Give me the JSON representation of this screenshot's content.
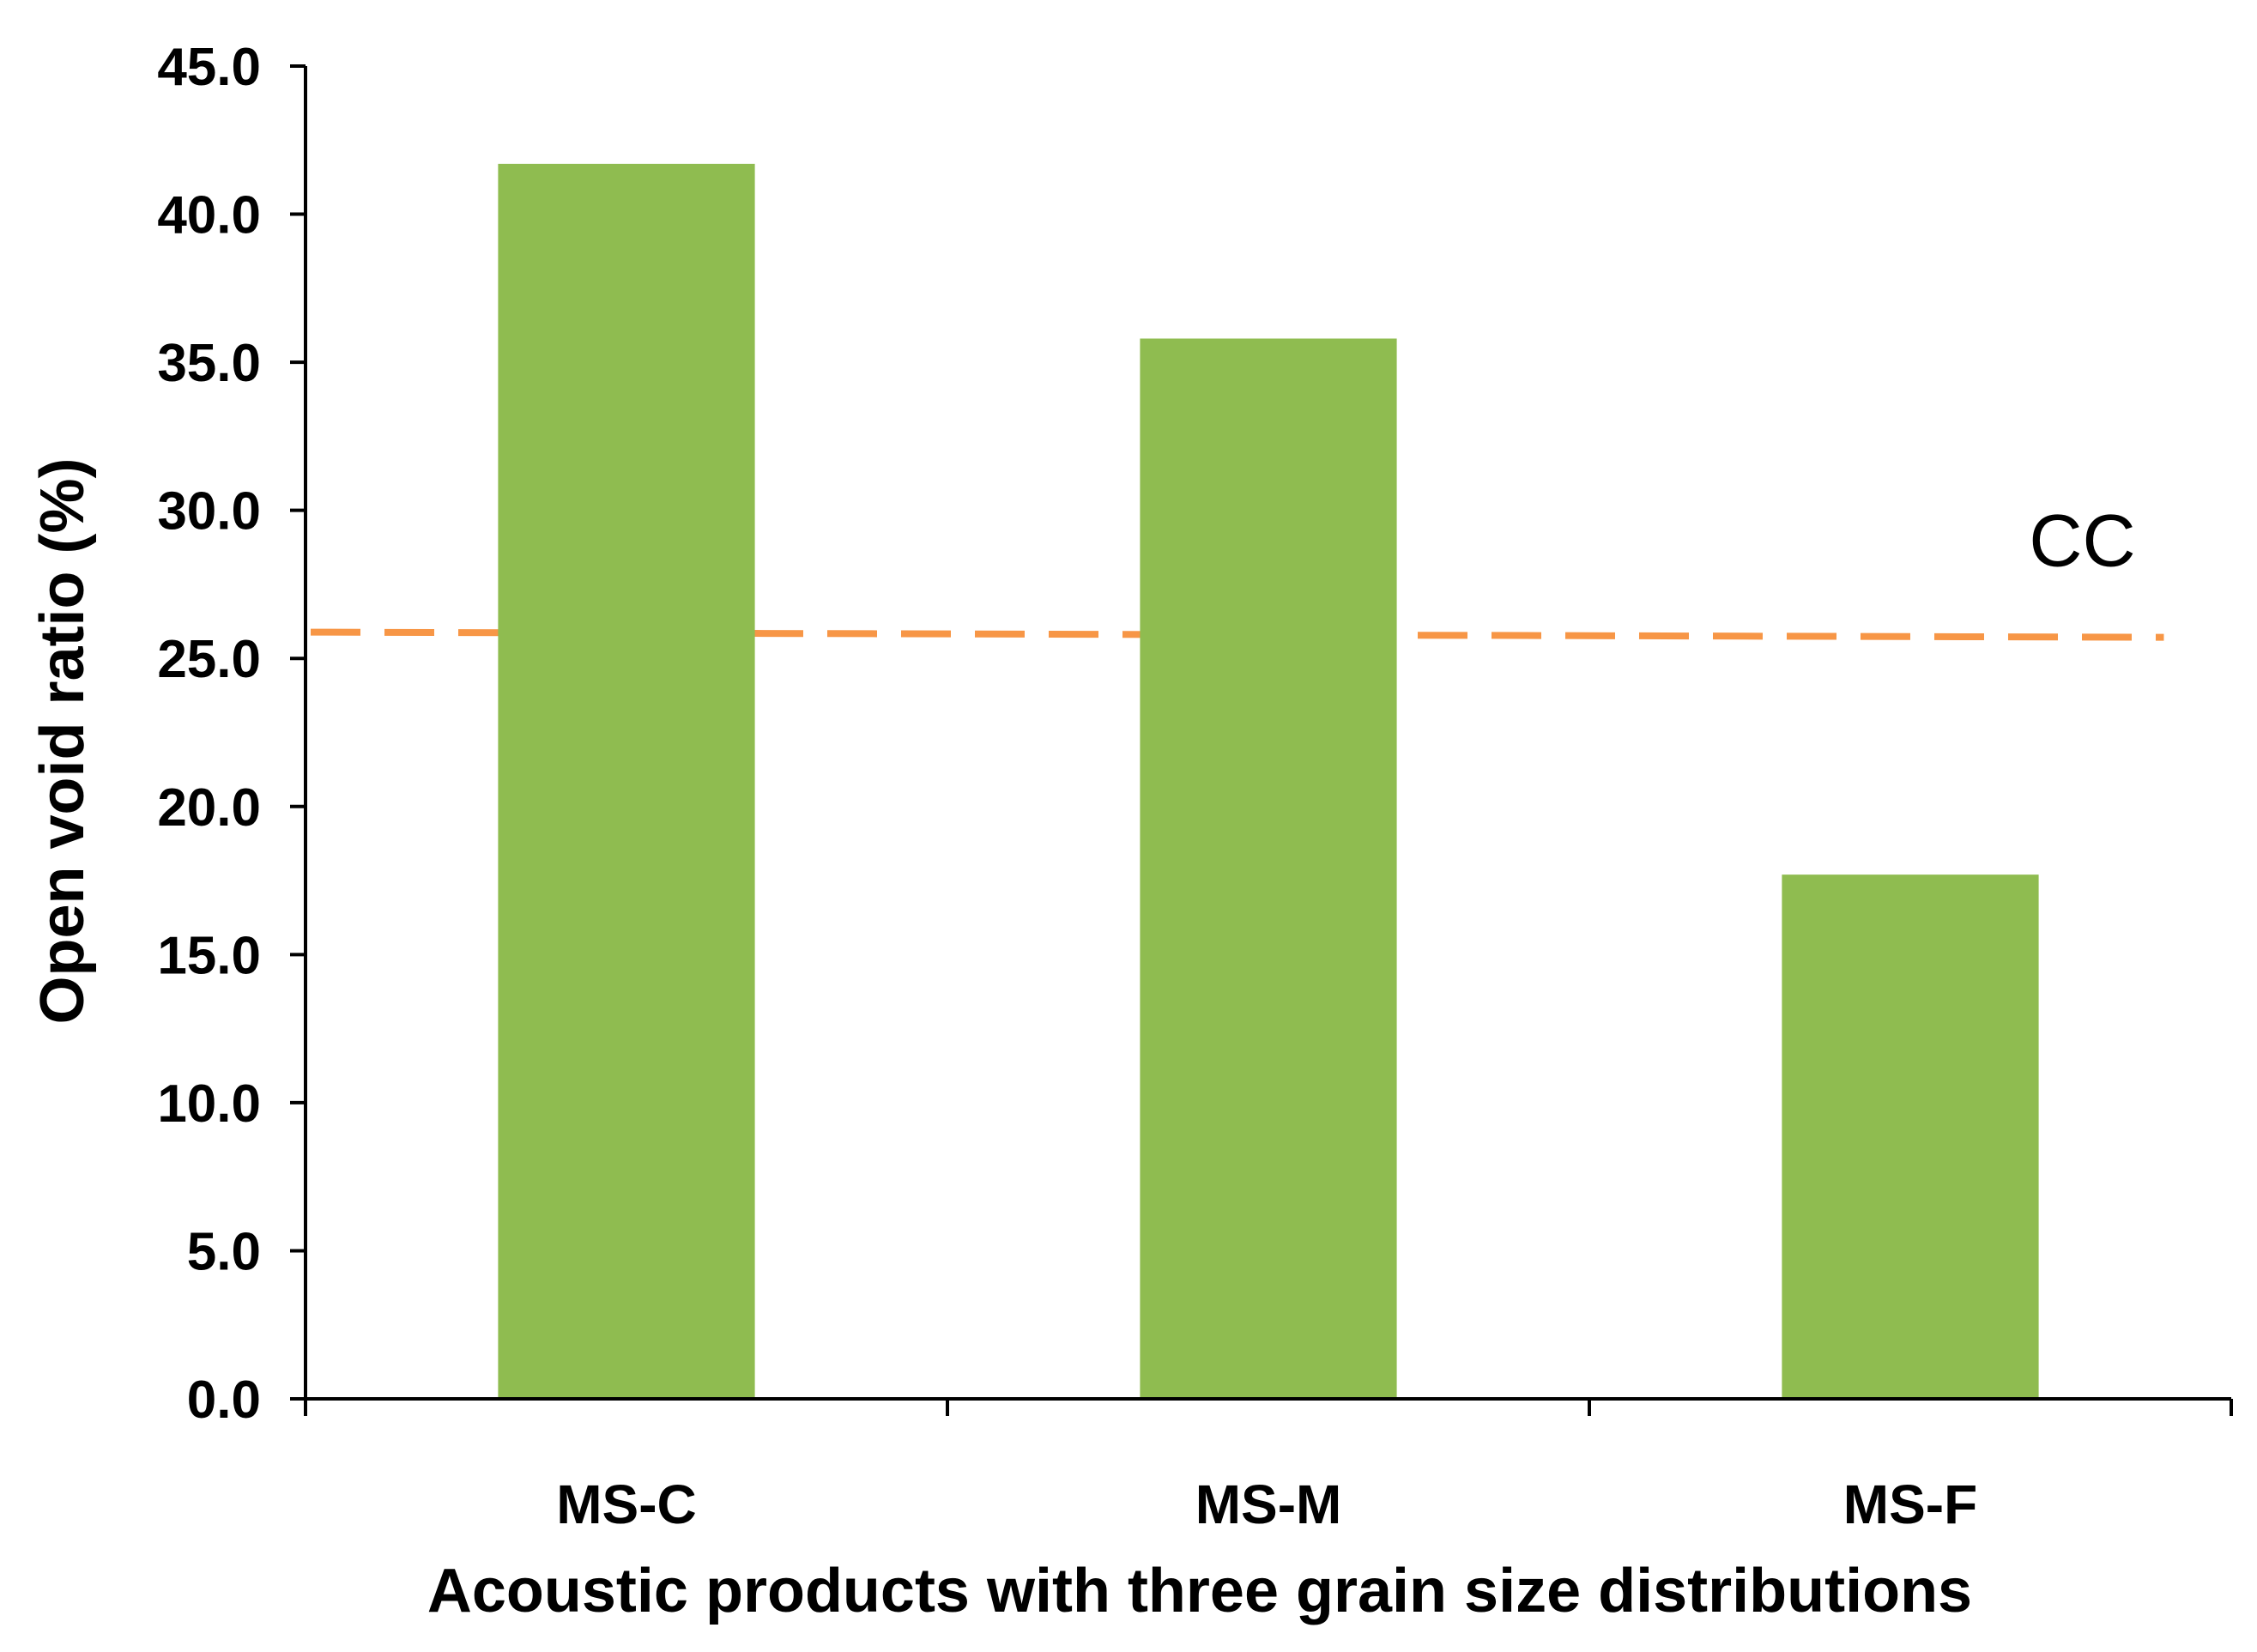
{
  "chart_data": {
    "type": "bar",
    "title": "",
    "xlabel": "Acoustic products with three grain size distributions",
    "ylabel": "Open void ratio (%)",
    "categories": [
      "MS-C",
      "MS-M",
      "MS-F"
    ],
    "values": [
      41.7,
      35.8,
      17.7
    ],
    "ylim": [
      0,
      45
    ],
    "yticks": [
      0,
      5,
      10,
      15,
      20,
      25,
      30,
      35,
      40,
      45
    ],
    "ytick_labels": [
      "0.0",
      "5.0",
      "10.0",
      "15.0",
      "20.0",
      "25.0",
      "30.0",
      "35.0",
      "40.0",
      "45.0"
    ],
    "grid": false,
    "legend": "none",
    "bar_color": "#8FBC50",
    "reference_line": {
      "label": "CC",
      "value": 25.8,
      "color": "#F79646",
      "style": "dashed"
    }
  }
}
